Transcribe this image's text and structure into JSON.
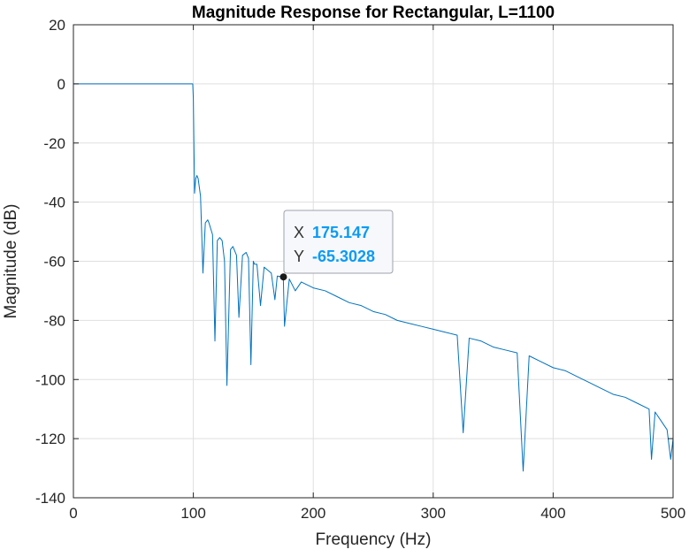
{
  "chart_data": {
    "type": "line",
    "title": "Magnitude Response for Rectangular, L=1100",
    "xlabel": "Frequency (Hz)",
    "ylabel": "Magnitude (dB)",
    "xlim": [
      0,
      500
    ],
    "ylim": [
      -140,
      20
    ],
    "xticks": [
      0,
      100,
      200,
      300,
      400,
      500
    ],
    "yticks": [
      20,
      0,
      -20,
      -40,
      -60,
      -80,
      -100,
      -120,
      -140
    ],
    "xtick_labels": [
      "0",
      "100",
      "200",
      "300",
      "400",
      "500"
    ],
    "ytick_labels": [
      "20",
      "0",
      "-20",
      "-40",
      "-60",
      "-80",
      "-100",
      "-120",
      "-140"
    ],
    "grid": true,
    "line_color": "#0072bd",
    "series": [
      {
        "x": [
          0,
          99.5,
          100,
          101,
          102,
          103,
          104,
          106,
          108,
          110,
          112,
          113,
          116,
          118,
          120,
          122,
          124,
          126,
          128,
          131,
          133,
          136,
          138,
          141,
          144,
          146,
          148,
          150,
          151,
          153,
          156,
          159,
          162,
          165,
          168,
          170,
          175,
          176,
          180,
          185,
          190,
          200,
          210,
          220,
          230,
          240,
          250,
          260,
          270,
          280,
          290,
          300,
          310,
          320,
          325,
          330,
          340,
          350,
          360,
          370,
          375,
          380,
          390,
          400,
          410,
          420,
          430,
          440,
          450,
          460,
          470,
          480,
          482,
          485,
          490,
          495,
          498,
          500
        ],
        "y": [
          0,
          0,
          -5,
          -37,
          -32,
          -31,
          -32,
          -38,
          -64,
          -47,
          -46,
          -47,
          -51,
          -87,
          -53,
          -52,
          -53,
          -60,
          -102,
          -56,
          -55,
          -58,
          -79,
          -58,
          -57,
          -59,
          -95,
          -60,
          -61,
          -61,
          -75,
          -62,
          -63,
          -64,
          -73,
          -65,
          -65.3,
          -82,
          -66,
          -70,
          -67,
          -69,
          -70,
          -72,
          -74,
          -75,
          -77,
          -78,
          -80,
          -81,
          -82,
          -83,
          -84,
          -85,
          -118,
          -86,
          -87,
          -89,
          -90,
          -91,
          -131,
          -92,
          -94,
          -96,
          -97,
          -99,
          -101,
          -103,
          -105,
          -106,
          -108,
          -110,
          -127,
          -111,
          -114,
          -117,
          -127,
          -120
        ]
      }
    ],
    "datatip": {
      "x_label": "X",
      "x_value": "175.147",
      "y_label": "Y",
      "y_value": "-65.3028",
      "value_color": "#0b9bf5",
      "x": 175.147,
      "y": -65.3028
    }
  }
}
